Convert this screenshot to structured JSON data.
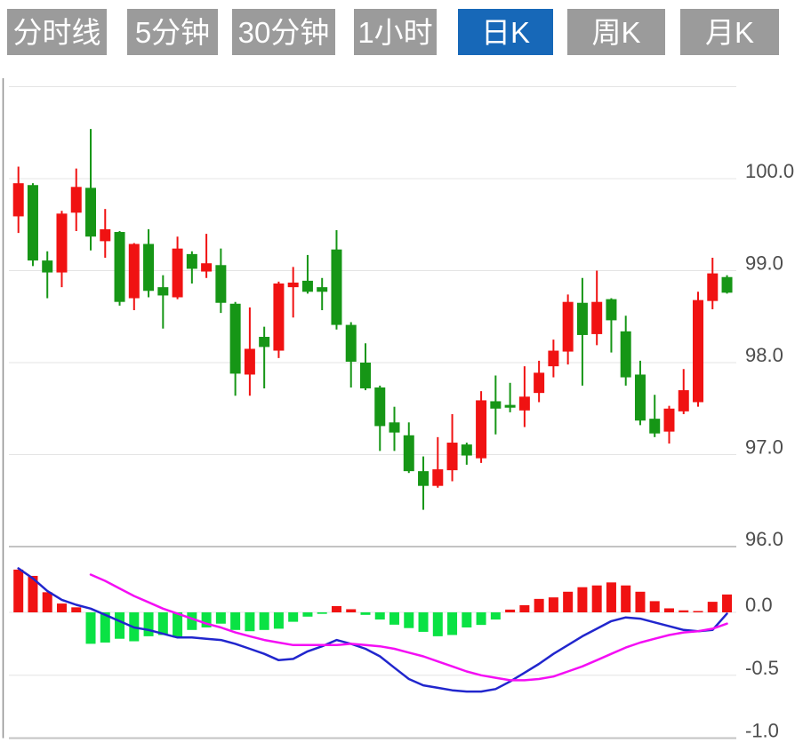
{
  "toolbar": {
    "buttons": [
      {
        "label": "分时线",
        "active": false
      },
      {
        "label": "5分钟",
        "active": false
      },
      {
        "label": "30分钟",
        "active": false
      },
      {
        "label": "1小时",
        "active": false
      },
      {
        "label": "日K",
        "active": true
      },
      {
        "label": "周K",
        "active": false
      },
      {
        "label": "月K",
        "active": false
      }
    ]
  },
  "colors": {
    "tab_inactive_bg": "#9b9b9b",
    "tab_active_bg": "#1768b8",
    "tab_text": "#ffffff",
    "grid_light": "#e4e4e4",
    "grid_strong": "#c3c3c3",
    "left_border": "#8f8f8f",
    "axis_text": "#4c4c4c",
    "candle_up": "#f01212",
    "candle_down": "#169616",
    "hist_up": "#f01212",
    "hist_down": "#0ae244",
    "dif_line": "#2126cd",
    "dea_line": "#f40ef4"
  },
  "chart_data": {
    "type": "candlestick+macd",
    "title": "",
    "legend_position": "none",
    "grid": "horizontal-only",
    "price_panel": {
      "axis_side": "right",
      "ylim": [
        95.9,
        101.1
      ],
      "gridline_values": [
        101,
        100,
        99,
        98,
        97,
        96
      ],
      "tick_labels": [
        {
          "text": "100.0",
          "value": 100
        },
        {
          "text": "99.0",
          "value": 99
        },
        {
          "text": "98.0",
          "value": 98
        },
        {
          "text": "97.0",
          "value": 97
        },
        {
          "text": "96.0",
          "value": 96
        }
      ]
    },
    "candles": [
      {
        "o": 99.59,
        "h": 100.13,
        "l": 99.41,
        "c": 99.95
      },
      {
        "o": 99.93,
        "h": 99.95,
        "l": 99.05,
        "c": 99.11
      },
      {
        "o": 99.11,
        "h": 99.21,
        "l": 98.7,
        "c": 98.98
      },
      {
        "o": 98.98,
        "h": 99.65,
        "l": 98.82,
        "c": 99.62
      },
      {
        "o": 99.63,
        "h": 100.11,
        "l": 99.43,
        "c": 99.91
      },
      {
        "o": 99.9,
        "h": 100.54,
        "l": 99.22,
        "c": 99.37
      },
      {
        "o": 99.32,
        "h": 99.67,
        "l": 99.14,
        "c": 99.45
      },
      {
        "o": 99.42,
        "h": 99.43,
        "l": 98.62,
        "c": 98.66
      },
      {
        "o": 98.7,
        "h": 99.3,
        "l": 98.57,
        "c": 99.29
      },
      {
        "o": 99.29,
        "h": 99.45,
        "l": 98.71,
        "c": 98.78
      },
      {
        "o": 98.82,
        "h": 98.95,
        "l": 98.37,
        "c": 98.73
      },
      {
        "o": 98.71,
        "h": 99.37,
        "l": 98.69,
        "c": 99.24
      },
      {
        "o": 99.18,
        "h": 99.21,
        "l": 98.86,
        "c": 99.02
      },
      {
        "o": 98.99,
        "h": 99.4,
        "l": 98.92,
        "c": 99.08
      },
      {
        "o": 99.06,
        "h": 99.24,
        "l": 98.54,
        "c": 98.65
      },
      {
        "o": 98.64,
        "h": 98.66,
        "l": 97.64,
        "c": 97.88
      },
      {
        "o": 97.87,
        "h": 98.6,
        "l": 97.64,
        "c": 98.15
      },
      {
        "o": 98.28,
        "h": 98.39,
        "l": 97.72,
        "c": 98.17
      },
      {
        "o": 98.13,
        "h": 98.88,
        "l": 98.05,
        "c": 98.86
      },
      {
        "o": 98.82,
        "h": 99.04,
        "l": 98.49,
        "c": 98.87
      },
      {
        "o": 98.89,
        "h": 99.17,
        "l": 98.75,
        "c": 98.77
      },
      {
        "o": 98.82,
        "h": 98.92,
        "l": 98.57,
        "c": 98.77
      },
      {
        "o": 99.23,
        "h": 99.44,
        "l": 98.36,
        "c": 98.41
      },
      {
        "o": 98.41,
        "h": 98.44,
        "l": 97.73,
        "c": 98.01
      },
      {
        "o": 98.0,
        "h": 98.21,
        "l": 97.7,
        "c": 97.72
      },
      {
        "o": 97.73,
        "h": 97.75,
        "l": 97.04,
        "c": 97.31
      },
      {
        "o": 97.35,
        "h": 97.52,
        "l": 97.04,
        "c": 97.24
      },
      {
        "o": 97.21,
        "h": 97.35,
        "l": 96.8,
        "c": 96.82
      },
      {
        "o": 96.82,
        "h": 96.98,
        "l": 96.4,
        "c": 96.66
      },
      {
        "o": 96.66,
        "h": 97.19,
        "l": 96.64,
        "c": 96.84
      },
      {
        "o": 96.83,
        "h": 97.44,
        "l": 96.71,
        "c": 97.13
      },
      {
        "o": 97.11,
        "h": 97.13,
        "l": 96.89,
        "c": 96.99
      },
      {
        "o": 96.96,
        "h": 97.69,
        "l": 96.91,
        "c": 97.59
      },
      {
        "o": 97.58,
        "h": 97.86,
        "l": 97.22,
        "c": 97.5
      },
      {
        "o": 97.54,
        "h": 97.78,
        "l": 97.46,
        "c": 97.51
      },
      {
        "o": 97.48,
        "h": 97.96,
        "l": 97.3,
        "c": 97.63
      },
      {
        "o": 97.67,
        "h": 98.02,
        "l": 97.57,
        "c": 97.89
      },
      {
        "o": 97.96,
        "h": 98.25,
        "l": 97.84,
        "c": 98.13
      },
      {
        "o": 98.12,
        "h": 98.74,
        "l": 97.98,
        "c": 98.66
      },
      {
        "o": 98.65,
        "h": 98.92,
        "l": 97.75,
        "c": 98.3
      },
      {
        "o": 98.31,
        "h": 99.0,
        "l": 98.19,
        "c": 98.66
      },
      {
        "o": 98.69,
        "h": 98.7,
        "l": 98.11,
        "c": 98.46
      },
      {
        "o": 98.34,
        "h": 98.51,
        "l": 97.75,
        "c": 97.84
      },
      {
        "o": 97.87,
        "h": 98.02,
        "l": 97.32,
        "c": 97.37
      },
      {
        "o": 97.39,
        "h": 97.65,
        "l": 97.19,
        "c": 97.23
      },
      {
        "o": 97.25,
        "h": 97.53,
        "l": 97.12,
        "c": 97.5
      },
      {
        "o": 97.47,
        "h": 97.93,
        "l": 97.44,
        "c": 97.7
      },
      {
        "o": 97.57,
        "h": 98.77,
        "l": 97.52,
        "c": 98.68
      },
      {
        "o": 98.67,
        "h": 99.14,
        "l": 98.58,
        "c": 98.97
      },
      {
        "o": 98.93,
        "h": 98.95,
        "l": 98.75,
        "c": 98.76
      }
    ],
    "macd_panel": {
      "axis_side": "right",
      "ylim": [
        0.55,
        -1.05
      ],
      "gridline_values": [
        0,
        -0.5,
        -1.0
      ],
      "tick_labels": [
        {
          "text": "0.0",
          "value": 0
        },
        {
          "text": "-0.5",
          "value": -0.5
        },
        {
          "text": "-1.0",
          "value": -1.0
        }
      ]
    },
    "macd_histogram": [
      0.34,
      0.29,
      0.16,
      0.07,
      0.04,
      -0.25,
      -0.24,
      -0.21,
      -0.23,
      -0.19,
      -0.18,
      -0.2,
      -0.14,
      -0.12,
      -0.09,
      -0.14,
      -0.15,
      -0.14,
      -0.13,
      -0.075,
      -0.034,
      -0.012,
      0.05,
      0.025,
      -0.02,
      -0.057,
      -0.098,
      -0.125,
      -0.155,
      -0.19,
      -0.18,
      -0.12,
      -0.1,
      -0.057,
      0.022,
      0.057,
      0.107,
      0.119,
      0.164,
      0.2,
      0.214,
      0.238,
      0.214,
      0.164,
      0.089,
      0.032,
      0.016,
      0.01,
      0.084,
      0.142
    ],
    "dif": [
      0.35,
      0.27,
      0.17,
      0.1,
      0.06,
      0.03,
      -0.02,
      -0.07,
      -0.12,
      -0.14,
      -0.17,
      -0.2,
      -0.2,
      -0.21,
      -0.22,
      -0.25,
      -0.29,
      -0.33,
      -0.38,
      -0.37,
      -0.31,
      -0.27,
      -0.22,
      -0.25,
      -0.29,
      -0.35,
      -0.44,
      -0.53,
      -0.58,
      -0.6,
      -0.62,
      -0.63,
      -0.63,
      -0.61,
      -0.55,
      -0.48,
      -0.41,
      -0.33,
      -0.26,
      -0.19,
      -0.13,
      -0.07,
      -0.04,
      -0.05,
      -0.08,
      -0.11,
      -0.14,
      -0.15,
      -0.14,
      -0.01
    ],
    "dea_start_index": 5,
    "dea": [
      0.3,
      0.25,
      0.19,
      0.13,
      0.08,
      0.03,
      -0.01,
      -0.05,
      -0.09,
      -0.12,
      -0.16,
      -0.19,
      -0.22,
      -0.24,
      -0.26,
      -0.26,
      -0.26,
      -0.26,
      -0.25,
      -0.26,
      -0.27,
      -0.29,
      -0.32,
      -0.35,
      -0.39,
      -0.43,
      -0.47,
      -0.5,
      -0.52,
      -0.54,
      -0.54,
      -0.53,
      -0.51,
      -0.47,
      -0.43,
      -0.38,
      -0.33,
      -0.28,
      -0.24,
      -0.21,
      -0.18,
      -0.16,
      -0.15,
      -0.13,
      -0.09
    ]
  }
}
